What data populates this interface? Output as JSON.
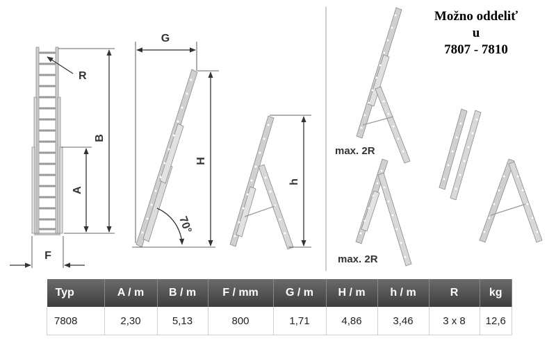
{
  "dimension_labels": {
    "r": "R",
    "b": "B",
    "a": "A",
    "f": "F",
    "g": "G",
    "h_upper": "H",
    "angle": "70°",
    "h_lower": "h"
  },
  "max_labels": [
    "max. 2R",
    "max. 2R"
  ],
  "note": {
    "line1": "Možno oddeliť",
    "line2": "u",
    "line3": "7807 - 7810"
  },
  "spec_table": {
    "headers": [
      "Typ",
      "A / m",
      "B / m",
      "F / mm",
      "G / m",
      "H / m",
      "h / m",
      "R",
      "kg"
    ],
    "rows": [
      [
        "7808",
        "2,30",
        "5,13",
        "800",
        "1,71",
        "4,86",
        "3,46",
        "3 x 8",
        "12,6"
      ]
    ]
  },
  "colors": {
    "ladder_fill": "#cfcfcf",
    "ladder_stroke": "#8a8a8a",
    "line": "#333333",
    "header_bg": "#555555"
  }
}
